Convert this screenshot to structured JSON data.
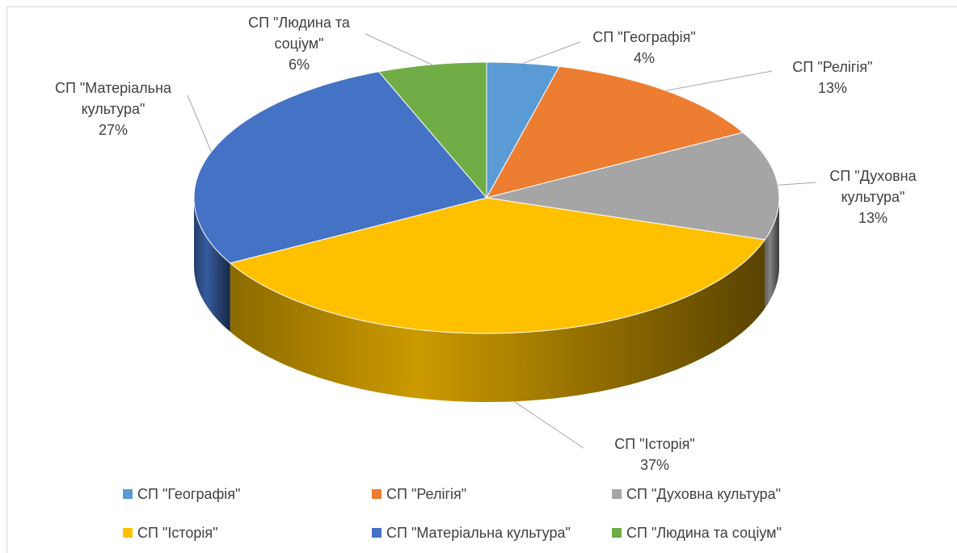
{
  "chart_data": {
    "type": "pie",
    "categories": [
      "СП \"Географія\"",
      "СП \"Релігія\"",
      "СП \"Духовна культура\"",
      "СП \"Історія\"",
      "СП \"Матеріальна культура\"",
      "СП \"Людина та соціум\""
    ],
    "values": [
      4,
      13,
      13,
      37,
      27,
      6
    ],
    "value_labels": [
      "4%",
      "13%",
      "13%",
      "37%",
      "27%",
      "6%"
    ],
    "colors": [
      "#5b9bd5",
      "#ed7d31",
      "#a5a5a5",
      "#ffc000",
      "#4472c4",
      "#70ad47"
    ],
    "legend": "bottom"
  }
}
